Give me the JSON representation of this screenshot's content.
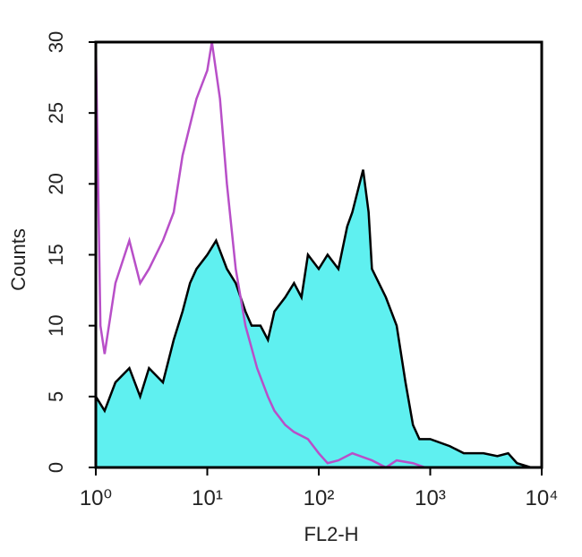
{
  "chart_data": {
    "type": "histogram-overlay",
    "xlabel": "FL2-H",
    "ylabel": "Counts",
    "xscale": "log",
    "xlim": [
      1,
      10000
    ],
    "xticks": [
      {
        "value": 1,
        "label": "10⁰"
      },
      {
        "value": 10,
        "label": "10¹"
      },
      {
        "value": 100,
        "label": "10²"
      },
      {
        "value": 1000,
        "label": "10³"
      },
      {
        "value": 10000,
        "label": "10⁴"
      }
    ],
    "ylim": [
      0,
      30
    ],
    "yticks": [
      0,
      5,
      10,
      15,
      20,
      25,
      30
    ],
    "series": [
      {
        "color": "#000000",
        "fill": "#5ff0f0",
        "x": [
          1,
          1.2,
          1.5,
          2,
          2.5,
          3,
          4,
          5,
          6,
          7,
          8,
          10,
          12,
          15,
          18,
          22,
          25,
          30,
          35,
          40,
          50,
          60,
          70,
          80,
          100,
          120,
          150,
          180,
          200,
          250,
          280,
          300,
          400,
          500,
          600,
          700,
          800,
          1000,
          1500,
          2000,
          3000,
          4000,
          5000,
          6000,
          8000
        ],
        "values": [
          5,
          4,
          6,
          7,
          5,
          7,
          6,
          9,
          11,
          13,
          14,
          15,
          16,
          14,
          13,
          11,
          10,
          10,
          9,
          11,
          12,
          13,
          12,
          15,
          14,
          15,
          14,
          17,
          18,
          21,
          18,
          14,
          12,
          10,
          6,
          3,
          2,
          2,
          1.5,
          1,
          1,
          0.8,
          1,
          0.3,
          0
        ]
      },
      {
        "color": "#b84fc8",
        "fill": null,
        "x": [
          1,
          1.1,
          1.2,
          1.5,
          2,
          2.5,
          3,
          4,
          5,
          6,
          8,
          10,
          11,
          13,
          15,
          18,
          22,
          28,
          35,
          40,
          50,
          60,
          80,
          100,
          120,
          150,
          200,
          300,
          400,
          500,
          700,
          900
        ],
        "values": [
          30,
          10,
          8,
          13,
          16,
          13,
          14,
          16,
          18,
          22,
          26,
          28,
          30,
          26,
          20,
          14,
          10,
          7,
          5,
          4,
          3,
          2.5,
          2,
          1,
          0.3,
          0.5,
          1,
          0.5,
          0,
          0.5,
          0.3,
          0
        ]
      }
    ]
  }
}
